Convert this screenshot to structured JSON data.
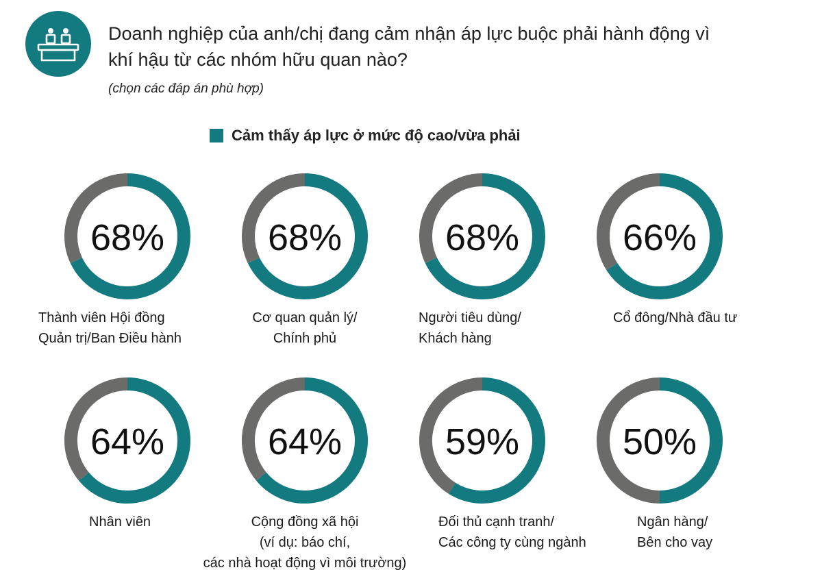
{
  "header": {
    "title_line1": "Doanh nghiệp của anh/chị đang cảm nhận áp lực buộc phải hành động vì",
    "title_line2": "khí hậu từ các nhóm hữu quan nào?",
    "subtitle": "(chọn các đáp án phù hợp)",
    "icon": "meeting-table-icon"
  },
  "colors": {
    "accent": "#137a7f",
    "remainder": "#6b6b69",
    "text": "#1a1a1a"
  },
  "chart_data": {
    "type": "donut",
    "legend": [
      {
        "label": "Cảm thấy áp lực ở mức độ cao/vừa phải",
        "color": "#137a7f"
      }
    ],
    "unit": "%",
    "items": [
      {
        "value": 68,
        "display": "68%",
        "label_lines": [
          "Thành viên Hội đồng",
          "Quản trị/Ban Điều hành"
        ]
      },
      {
        "value": 68,
        "display": "68%",
        "label_lines": [
          "Cơ quan quản lý/",
          "Chính phủ"
        ]
      },
      {
        "value": 68,
        "display": "68%",
        "label_lines": [
          "Người tiêu dùng/",
          "Khách hàng"
        ]
      },
      {
        "value": 66,
        "display": "66%",
        "label_lines": [
          "Cổ đông/Nhà đầu tư"
        ]
      },
      {
        "value": 64,
        "display": "64%",
        "label_lines": [
          "Nhân viên"
        ]
      },
      {
        "value": 64,
        "display": "64%",
        "label_lines": [
          "Cộng đồng xã hội",
          "(ví dụ: báo chí,",
          "các nhà hoạt động vì môi trường)"
        ]
      },
      {
        "value": 59,
        "display": "59%",
        "label_lines": [
          "Đối thủ cạnh tranh/",
          "Các công ty cùng ngành"
        ]
      },
      {
        "value": 50,
        "display": "50%",
        "label_lines": [
          "Ngân hàng/",
          "Bên cho vay"
        ]
      }
    ]
  }
}
